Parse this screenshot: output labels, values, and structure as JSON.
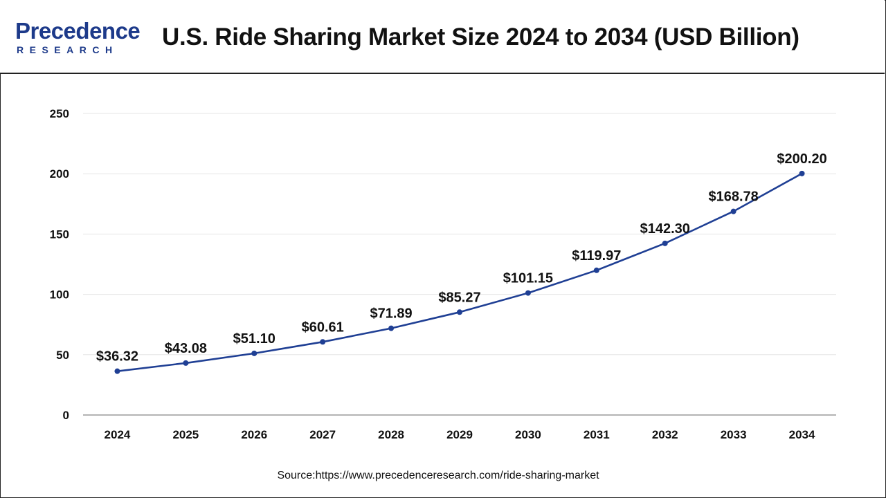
{
  "header": {
    "brand_name": "Precedence",
    "brand_sub": "RESEARCH",
    "title": "U.S. Ride Sharing Market Size 2024 to 2034 (USD Billion)"
  },
  "source_text": "Source:https://www.precedenceresearch.com/ride-sharing-market",
  "colors": {
    "line": "#1f3f94",
    "brand": "#1d3a8a",
    "text": "#111111",
    "grid": "#e6e6e6"
  },
  "chart_data": {
    "type": "line",
    "title": "U.S. Ride Sharing Market Size 2024 to 2034 (USD Billion)",
    "xlabel": "",
    "ylabel": "",
    "categories": [
      "2024",
      "2025",
      "2026",
      "2027",
      "2028",
      "2029",
      "2030",
      "2031",
      "2032",
      "2033",
      "2034"
    ],
    "series": [
      {
        "values": [
          36.32,
          43.08,
          51.1,
          60.61,
          71.89,
          85.27,
          101.15,
          119.97,
          142.3,
          168.78,
          200.2
        ],
        "labels": [
          "$36.32",
          "$43.08",
          "$51.10",
          "$60.61",
          "$71.89",
          "$85.27",
          "$101.15",
          "$119.97",
          "$142.30",
          "$168.78",
          "$200.20"
        ]
      }
    ],
    "ylim": [
      0,
      250
    ],
    "yticks": [
      "0",
      "50",
      "100",
      "150",
      "200",
      "250"
    ],
    "grid": true,
    "legend": "none"
  }
}
